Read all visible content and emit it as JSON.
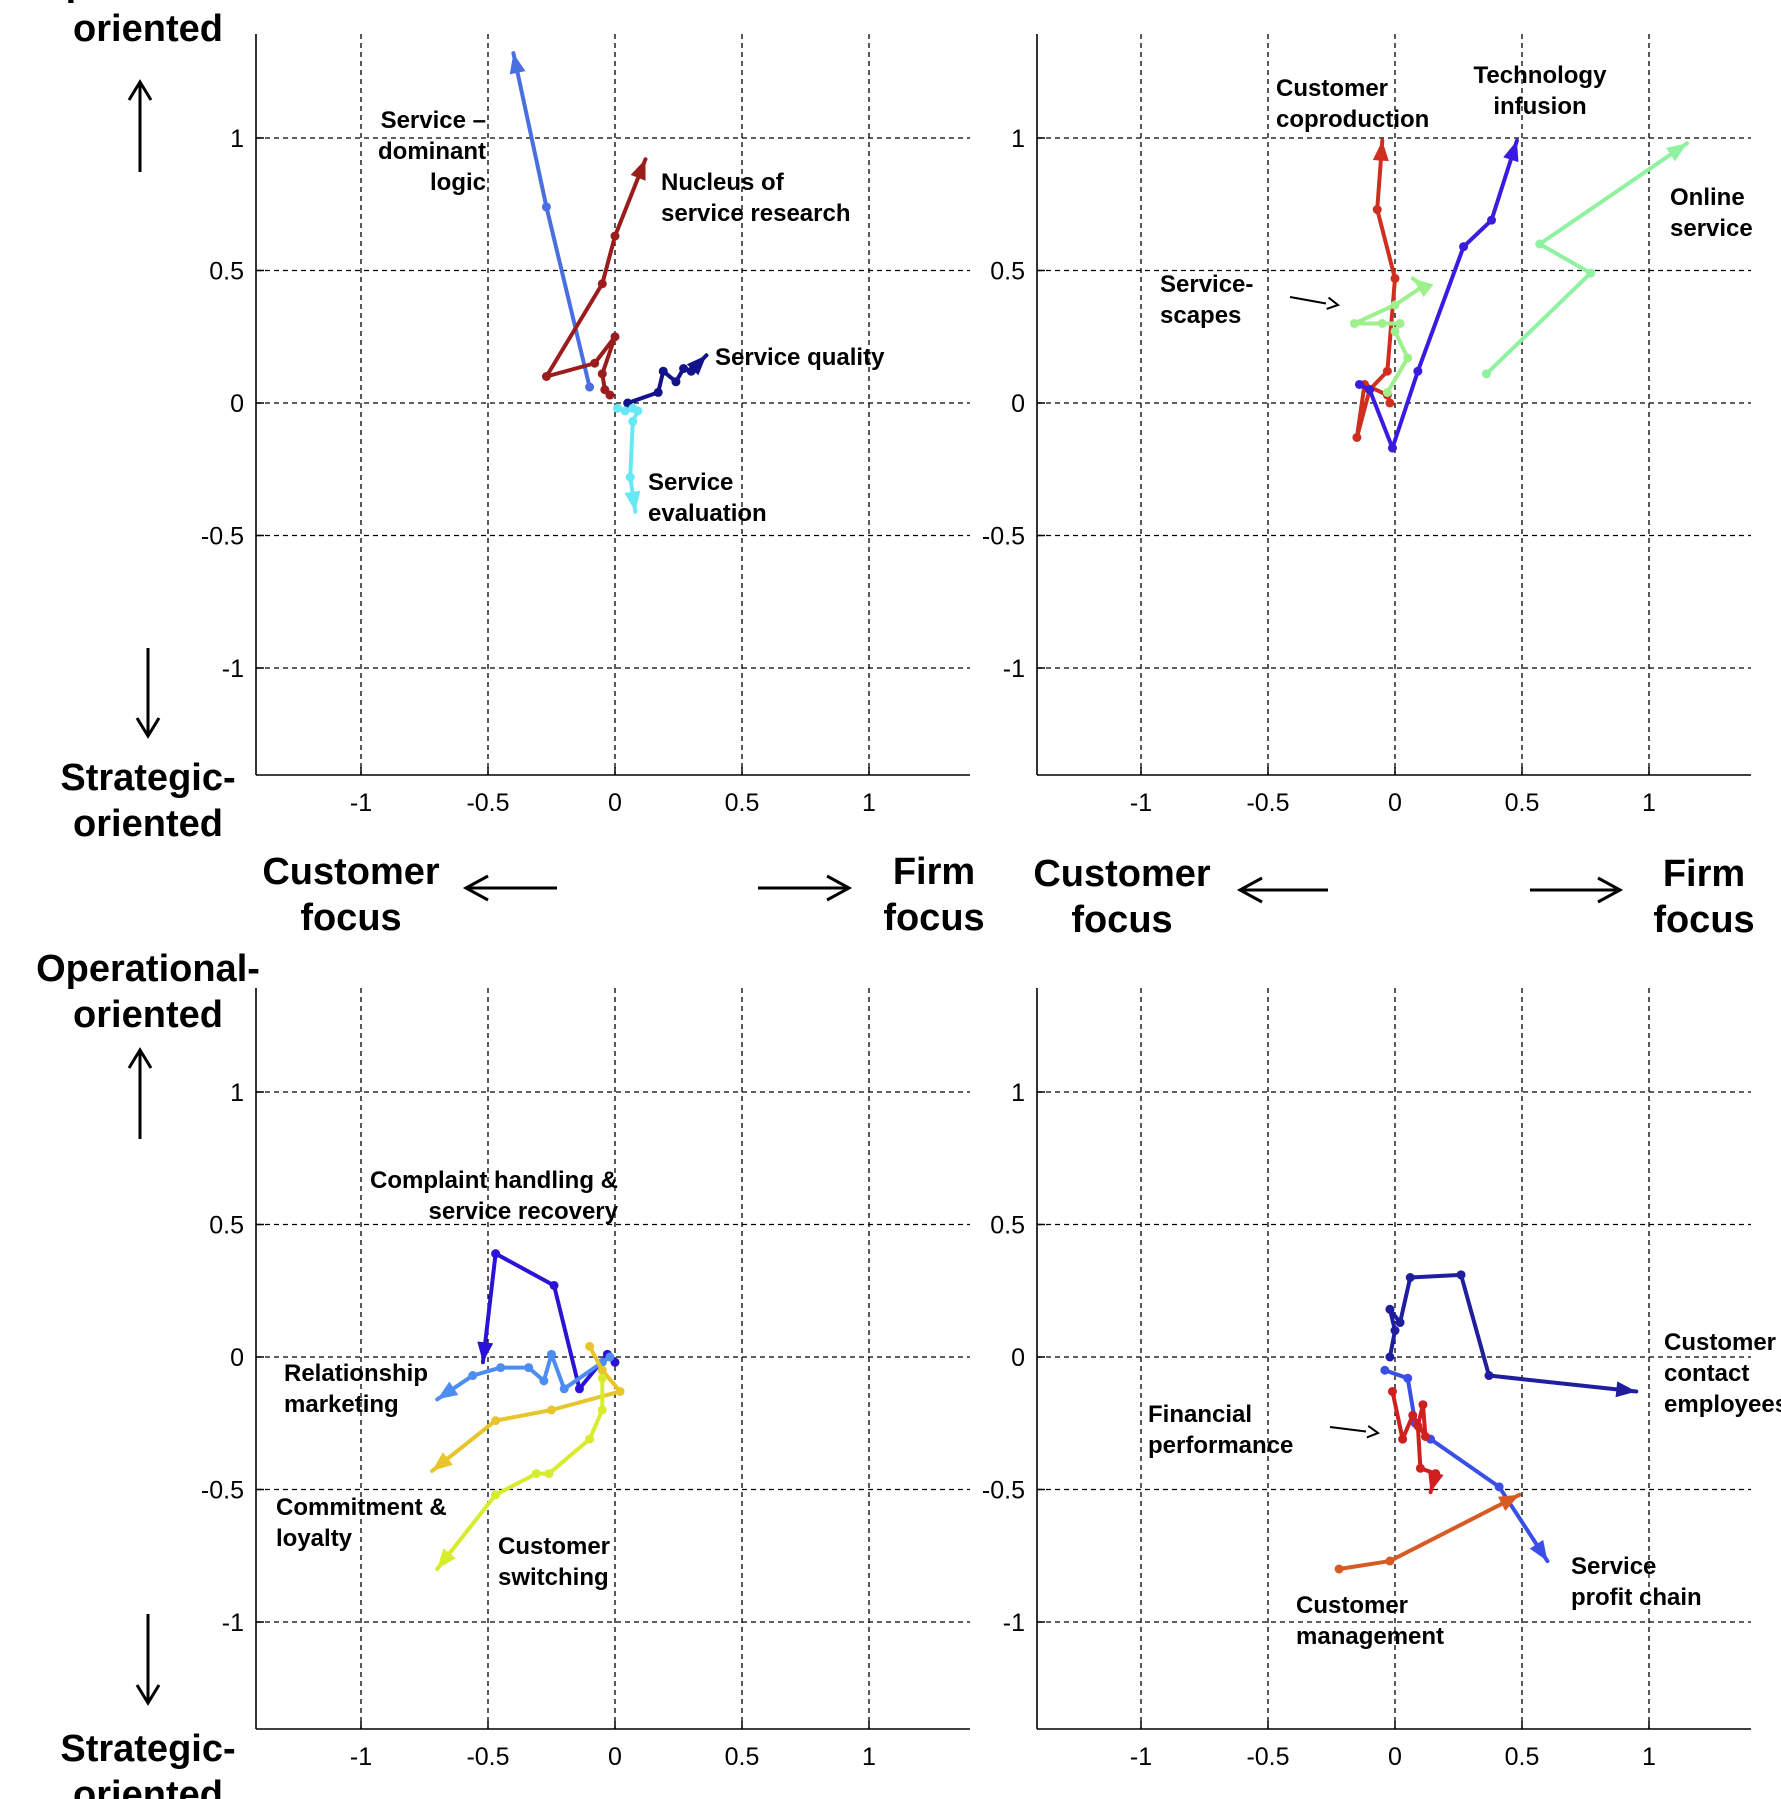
{
  "chart_data": [
    {
      "type": "line",
      "panel": "top-left",
      "xlim": [
        -1.4,
        1.4
      ],
      "ylim": [
        -1.4,
        1.4
      ],
      "xticks": [
        "-1",
        "-0.5",
        "0",
        "0.5",
        "1"
      ],
      "yticks": [
        "1",
        "0.5",
        "0",
        "-0.5",
        "-1"
      ],
      "grid": true,
      "series": [
        {
          "label": "Service –\ndominant\nlogic",
          "color": "#4a6fe0",
          "points": [
            [
              -0.1,
              0.06
            ],
            [
              -0.27,
              0.74
            ],
            [
              -0.4,
              1.32
            ]
          ]
        },
        {
          "label": "Nucleus of\nservice research",
          "color": "#9b1c1c",
          "points": [
            [
              -0.02,
              0.03
            ],
            [
              -0.04,
              0.05
            ],
            [
              -0.05,
              0.11
            ],
            [
              0.0,
              0.25
            ],
            [
              -0.08,
              0.15
            ],
            [
              -0.27,
              0.1
            ],
            [
              -0.05,
              0.45
            ],
            [
              0.0,
              0.63
            ],
            [
              0.12,
              0.92
            ]
          ]
        },
        {
          "label": "Service quality",
          "color": "#12128a",
          "points": [
            [
              0.05,
              0.0
            ],
            [
              0.17,
              0.04
            ],
            [
              0.19,
              0.12
            ],
            [
              0.24,
              0.08
            ],
            [
              0.27,
              0.13
            ],
            [
              0.3,
              0.12
            ],
            [
              0.36,
              0.18
            ]
          ]
        },
        {
          "label": "Service\nevaluation",
          "color": "#66e8f5",
          "points": [
            [
              0.01,
              -0.02
            ],
            [
              0.04,
              -0.03
            ],
            [
              0.07,
              -0.02
            ],
            [
              0.09,
              -0.03
            ],
            [
              0.07,
              -0.07
            ],
            [
              0.06,
              -0.28
            ],
            [
              0.08,
              -0.41
            ]
          ]
        }
      ]
    },
    {
      "type": "line",
      "panel": "top-right",
      "xlim": [
        -1.4,
        1.4
      ],
      "ylim": [
        -1.4,
        1.4
      ],
      "xticks": [
        "-1",
        "-0.5",
        "0",
        "0.5",
        "1"
      ],
      "yticks": [
        "1",
        "0.5",
        "0",
        "-0.5",
        "-1"
      ],
      "grid": true,
      "series": [
        {
          "label": "Customer\ncoproduction",
          "color": "#d02e1e",
          "points": [
            [
              -0.02,
              0.0
            ],
            [
              -0.03,
              0.03
            ],
            [
              -0.12,
              0.07
            ],
            [
              -0.15,
              -0.13
            ],
            [
              -0.1,
              0.05
            ],
            [
              -0.03,
              0.12
            ],
            [
              0.0,
              0.47
            ],
            [
              -0.07,
              0.73
            ],
            [
              -0.05,
              0.99
            ]
          ]
        },
        {
          "label": "Technology\ninfusion",
          "color": "#3a1ce0",
          "points": [
            [
              -0.14,
              0.07
            ],
            [
              -0.1,
              0.05
            ],
            [
              -0.01,
              -0.17
            ],
            [
              0.09,
              0.12
            ],
            [
              0.27,
              0.59
            ],
            [
              0.38,
              0.69
            ],
            [
              0.48,
              0.99
            ]
          ]
        },
        {
          "label": "Service-\nscapes",
          "color": "#9ef08c",
          "points": [
            [
              -0.03,
              0.04
            ],
            [
              0.05,
              0.17
            ],
            [
              0.0,
              0.27
            ],
            [
              0.02,
              0.3
            ],
            [
              -0.05,
              0.3
            ],
            [
              -0.16,
              0.3
            ],
            [
              0.0,
              0.37
            ],
            [
              0.11,
              0.44
            ],
            [
              0.07,
              0.47
            ]
          ]
        },
        {
          "label": "Online\nservice",
          "color": "#8ef2a0",
          "points": [
            [
              0.36,
              0.11
            ],
            [
              0.77,
              0.49
            ],
            [
              0.57,
              0.6
            ],
            [
              1.15,
              0.98
            ]
          ]
        }
      ]
    },
    {
      "type": "line",
      "panel": "bottom-left",
      "xlim": [
        -1.4,
        1.4
      ],
      "ylim": [
        -1.4,
        1.4
      ],
      "xticks": [
        "-1",
        "-0.5",
        "0",
        "0.5",
        "1"
      ],
      "yticks": [
        "1",
        "0.5",
        "0",
        "-0.5",
        "-1"
      ],
      "grid": true,
      "series": [
        {
          "label": "Complaint handling &\nservice recovery",
          "color": "#2a12d6",
          "points": [
            [
              0.0,
              -0.02
            ],
            [
              -0.03,
              0.01
            ],
            [
              -0.14,
              -0.12
            ],
            [
              -0.24,
              0.27
            ],
            [
              -0.47,
              0.39
            ],
            [
              -0.52,
              -0.02
            ]
          ]
        },
        {
          "label": "Relationship\nmarketing",
          "color": "#4d8cf0",
          "points": [
            [
              -0.02,
              0.0
            ],
            [
              -0.05,
              -0.02
            ],
            [
              -0.2,
              -0.12
            ],
            [
              -0.25,
              0.01
            ],
            [
              -0.28,
              -0.09
            ],
            [
              -0.34,
              -0.04
            ],
            [
              -0.45,
              -0.04
            ],
            [
              -0.56,
              -0.07
            ],
            [
              -0.7,
              -0.16
            ]
          ]
        },
        {
          "label": "Commitment &\nloyalty",
          "color": "#e8c52a",
          "points": [
            [
              -0.1,
              0.04
            ],
            [
              -0.05,
              -0.05
            ],
            [
              0.02,
              -0.13
            ],
            [
              -0.25,
              -0.2
            ],
            [
              -0.47,
              -0.24
            ],
            [
              -0.72,
              -0.43
            ]
          ]
        },
        {
          "label": "Customer\nswitching",
          "color": "#d7ec2c",
          "points": [
            [
              -0.05,
              -0.08
            ],
            [
              -0.05,
              -0.2
            ],
            [
              -0.1,
              -0.31
            ],
            [
              -0.26,
              -0.44
            ],
            [
              -0.31,
              -0.44
            ],
            [
              -0.47,
              -0.52
            ],
            [
              -0.7,
              -0.8
            ]
          ]
        }
      ]
    },
    {
      "type": "line",
      "panel": "bottom-right",
      "xlim": [
        -1.4,
        1.4
      ],
      "ylim": [
        -1.4,
        1.4
      ],
      "xticks": [
        "-1",
        "-0.5",
        "0",
        "0.5",
        "1"
      ],
      "yticks": [
        "1",
        "0.5",
        "0",
        "-0.5",
        "-1"
      ],
      "grid": true,
      "series": [
        {
          "label": "Customer\ncontact\nemployees",
          "color": "#1e1e9e",
          "points": [
            [
              -0.02,
              0.0
            ],
            [
              0.0,
              0.1
            ],
            [
              -0.02,
              0.18
            ],
            [
              0.02,
              0.13
            ],
            [
              0.06,
              0.3
            ],
            [
              0.26,
              0.31
            ],
            [
              0.37,
              -0.07
            ],
            [
              0.95,
              -0.13
            ]
          ]
        },
        {
          "label": "Service\nprofit chain",
          "color": "#3a4ee8",
          "points": [
            [
              -0.04,
              -0.05
            ],
            [
              0.05,
              -0.08
            ],
            [
              0.08,
              -0.25
            ],
            [
              0.14,
              -0.31
            ],
            [
              0.41,
              -0.49
            ],
            [
              0.6,
              -0.77
            ]
          ]
        },
        {
          "label": "Financial\nperformance",
          "color": "#cf1f1f",
          "points": [
            [
              -0.01,
              -0.13
            ],
            [
              0.03,
              -0.31
            ],
            [
              0.07,
              -0.22
            ],
            [
              0.12,
              -0.3
            ],
            [
              0.11,
              -0.18
            ],
            [
              0.09,
              -0.26
            ],
            [
              0.1,
              -0.42
            ],
            [
              0.16,
              -0.44
            ],
            [
              0.14,
              -0.51
            ]
          ]
        },
        {
          "label": "Customer\nmanagement",
          "color": "#d65a22",
          "points": [
            [
              -0.22,
              -0.8
            ],
            [
              -0.02,
              -0.77
            ],
            [
              0.49,
              -0.52
            ]
          ]
        }
      ]
    }
  ],
  "axis_words": {
    "top": "Operational-\noriented",
    "bottom": "Strategic-\noriented",
    "left": "Customer\nfocus",
    "right": "Firm\nfocus"
  }
}
